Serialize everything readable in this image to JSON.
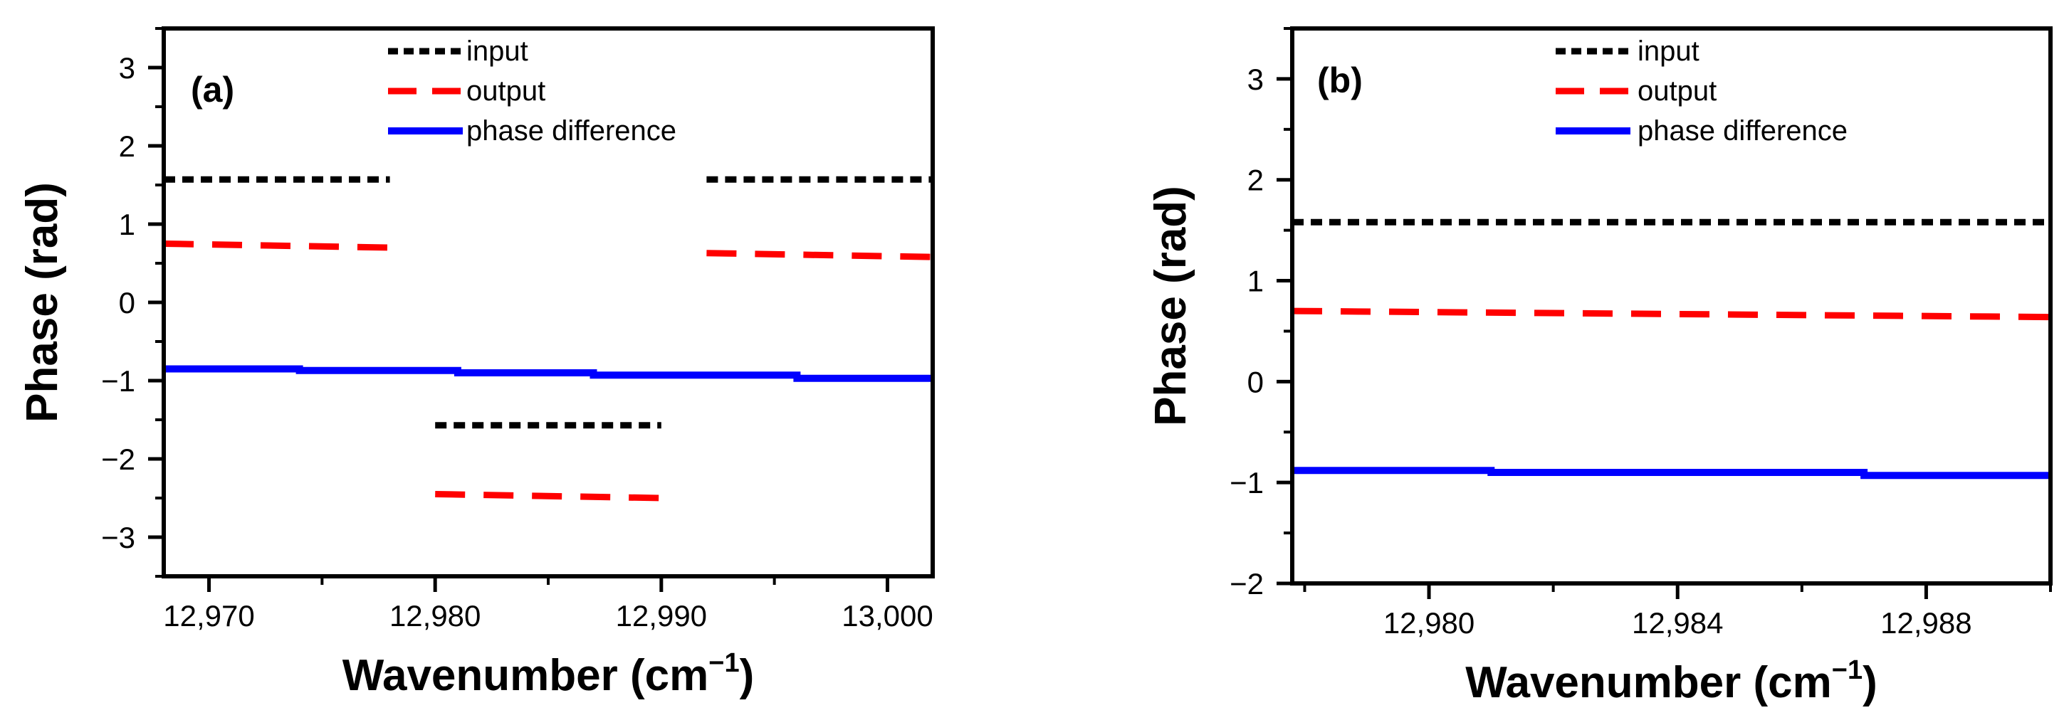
{
  "chart_data": [
    {
      "type": "line",
      "panel_label": "(a)",
      "xlabel_main": "Wavenumber (cm",
      "xlabel_sup": "−1",
      "xlabel_end": ")",
      "ylabel": "Phase (rad)",
      "xlim": [
        12968,
        13002
      ],
      "ylim": [
        -3.5,
        3.5
      ],
      "xticks": [
        12970,
        12980,
        12990,
        13000
      ],
      "xtick_labels": [
        "12,970",
        "12,980",
        "12,990",
        "13,000"
      ],
      "yticks": [
        3,
        2,
        1,
        0,
        -1,
        -2,
        -3
      ],
      "ytick_labels": [
        "3",
        "2",
        "1",
        "0",
        "−1",
        "−2",
        "−3"
      ],
      "legend_position": "top-center",
      "series": [
        {
          "name": "input",
          "color": "#000000",
          "style": "dotted",
          "segments": [
            {
              "x": [
                12968,
                12978
              ],
              "y": [
                1.57,
                1.57
              ]
            },
            {
              "x": [
                12980,
                12990
              ],
              "y": [
                -1.57,
                -1.57
              ]
            },
            {
              "x": [
                12992,
                13002
              ],
              "y": [
                1.57,
                1.57
              ]
            }
          ]
        },
        {
          "name": "output",
          "color": "#ff0000",
          "style": "dashed",
          "segments": [
            {
              "x": [
                12968,
                12978
              ],
              "y": [
                0.75,
                0.7
              ]
            },
            {
              "x": [
                12980,
                12990
              ],
              "y": [
                -2.45,
                -2.5
              ]
            },
            {
              "x": [
                12992,
                13002
              ],
              "y": [
                0.63,
                0.58
              ]
            }
          ]
        },
        {
          "name": "phase difference",
          "color": "#0000ff",
          "style": "solid",
          "segments": [
            {
              "x": [
                12968,
                12974,
                12974,
                12981,
                12981,
                12987,
                12987,
                12996,
                12996,
                13002
              ],
              "y": [
                -0.85,
                -0.85,
                -0.87,
                -0.87,
                -0.9,
                -0.9,
                -0.93,
                -0.93,
                -0.97,
                -0.97
              ]
            }
          ]
        }
      ]
    },
    {
      "type": "line",
      "panel_label": "(b)",
      "xlabel_main": "Wavenumber (cm",
      "xlabel_sup": "−1",
      "xlabel_end": ")",
      "ylabel": "Phase (rad)",
      "xlim": [
        12977.8,
        12990
      ],
      "ylim": [
        -2,
        3.5
      ],
      "xticks": [
        12980,
        12984,
        12988
      ],
      "xtick_labels": [
        "12,980",
        "12,984",
        "12,988"
      ],
      "yticks": [
        3,
        2,
        1,
        0,
        -1,
        -2
      ],
      "ytick_labels": [
        "3",
        "2",
        "1",
        "0",
        "−1",
        "−2"
      ],
      "legend_position": "top-center",
      "series": [
        {
          "name": "input",
          "color": "#000000",
          "style": "dotted",
          "segments": [
            {
              "x": [
                12977.8,
                12990
              ],
              "y": [
                1.58,
                1.58
              ]
            }
          ]
        },
        {
          "name": "output",
          "color": "#ff0000",
          "style": "dashed",
          "segments": [
            {
              "x": [
                12977.8,
                12990
              ],
              "y": [
                0.7,
                0.64
              ]
            }
          ]
        },
        {
          "name": "phase difference",
          "color": "#0000ff",
          "style": "solid",
          "segments": [
            {
              "x": [
                12977.8,
                12981,
                12981,
                12987,
                12987,
                12990
              ],
              "y": [
                -0.88,
                -0.88,
                -0.9,
                -0.9,
                -0.93,
                -0.93
              ]
            }
          ]
        }
      ]
    }
  ]
}
